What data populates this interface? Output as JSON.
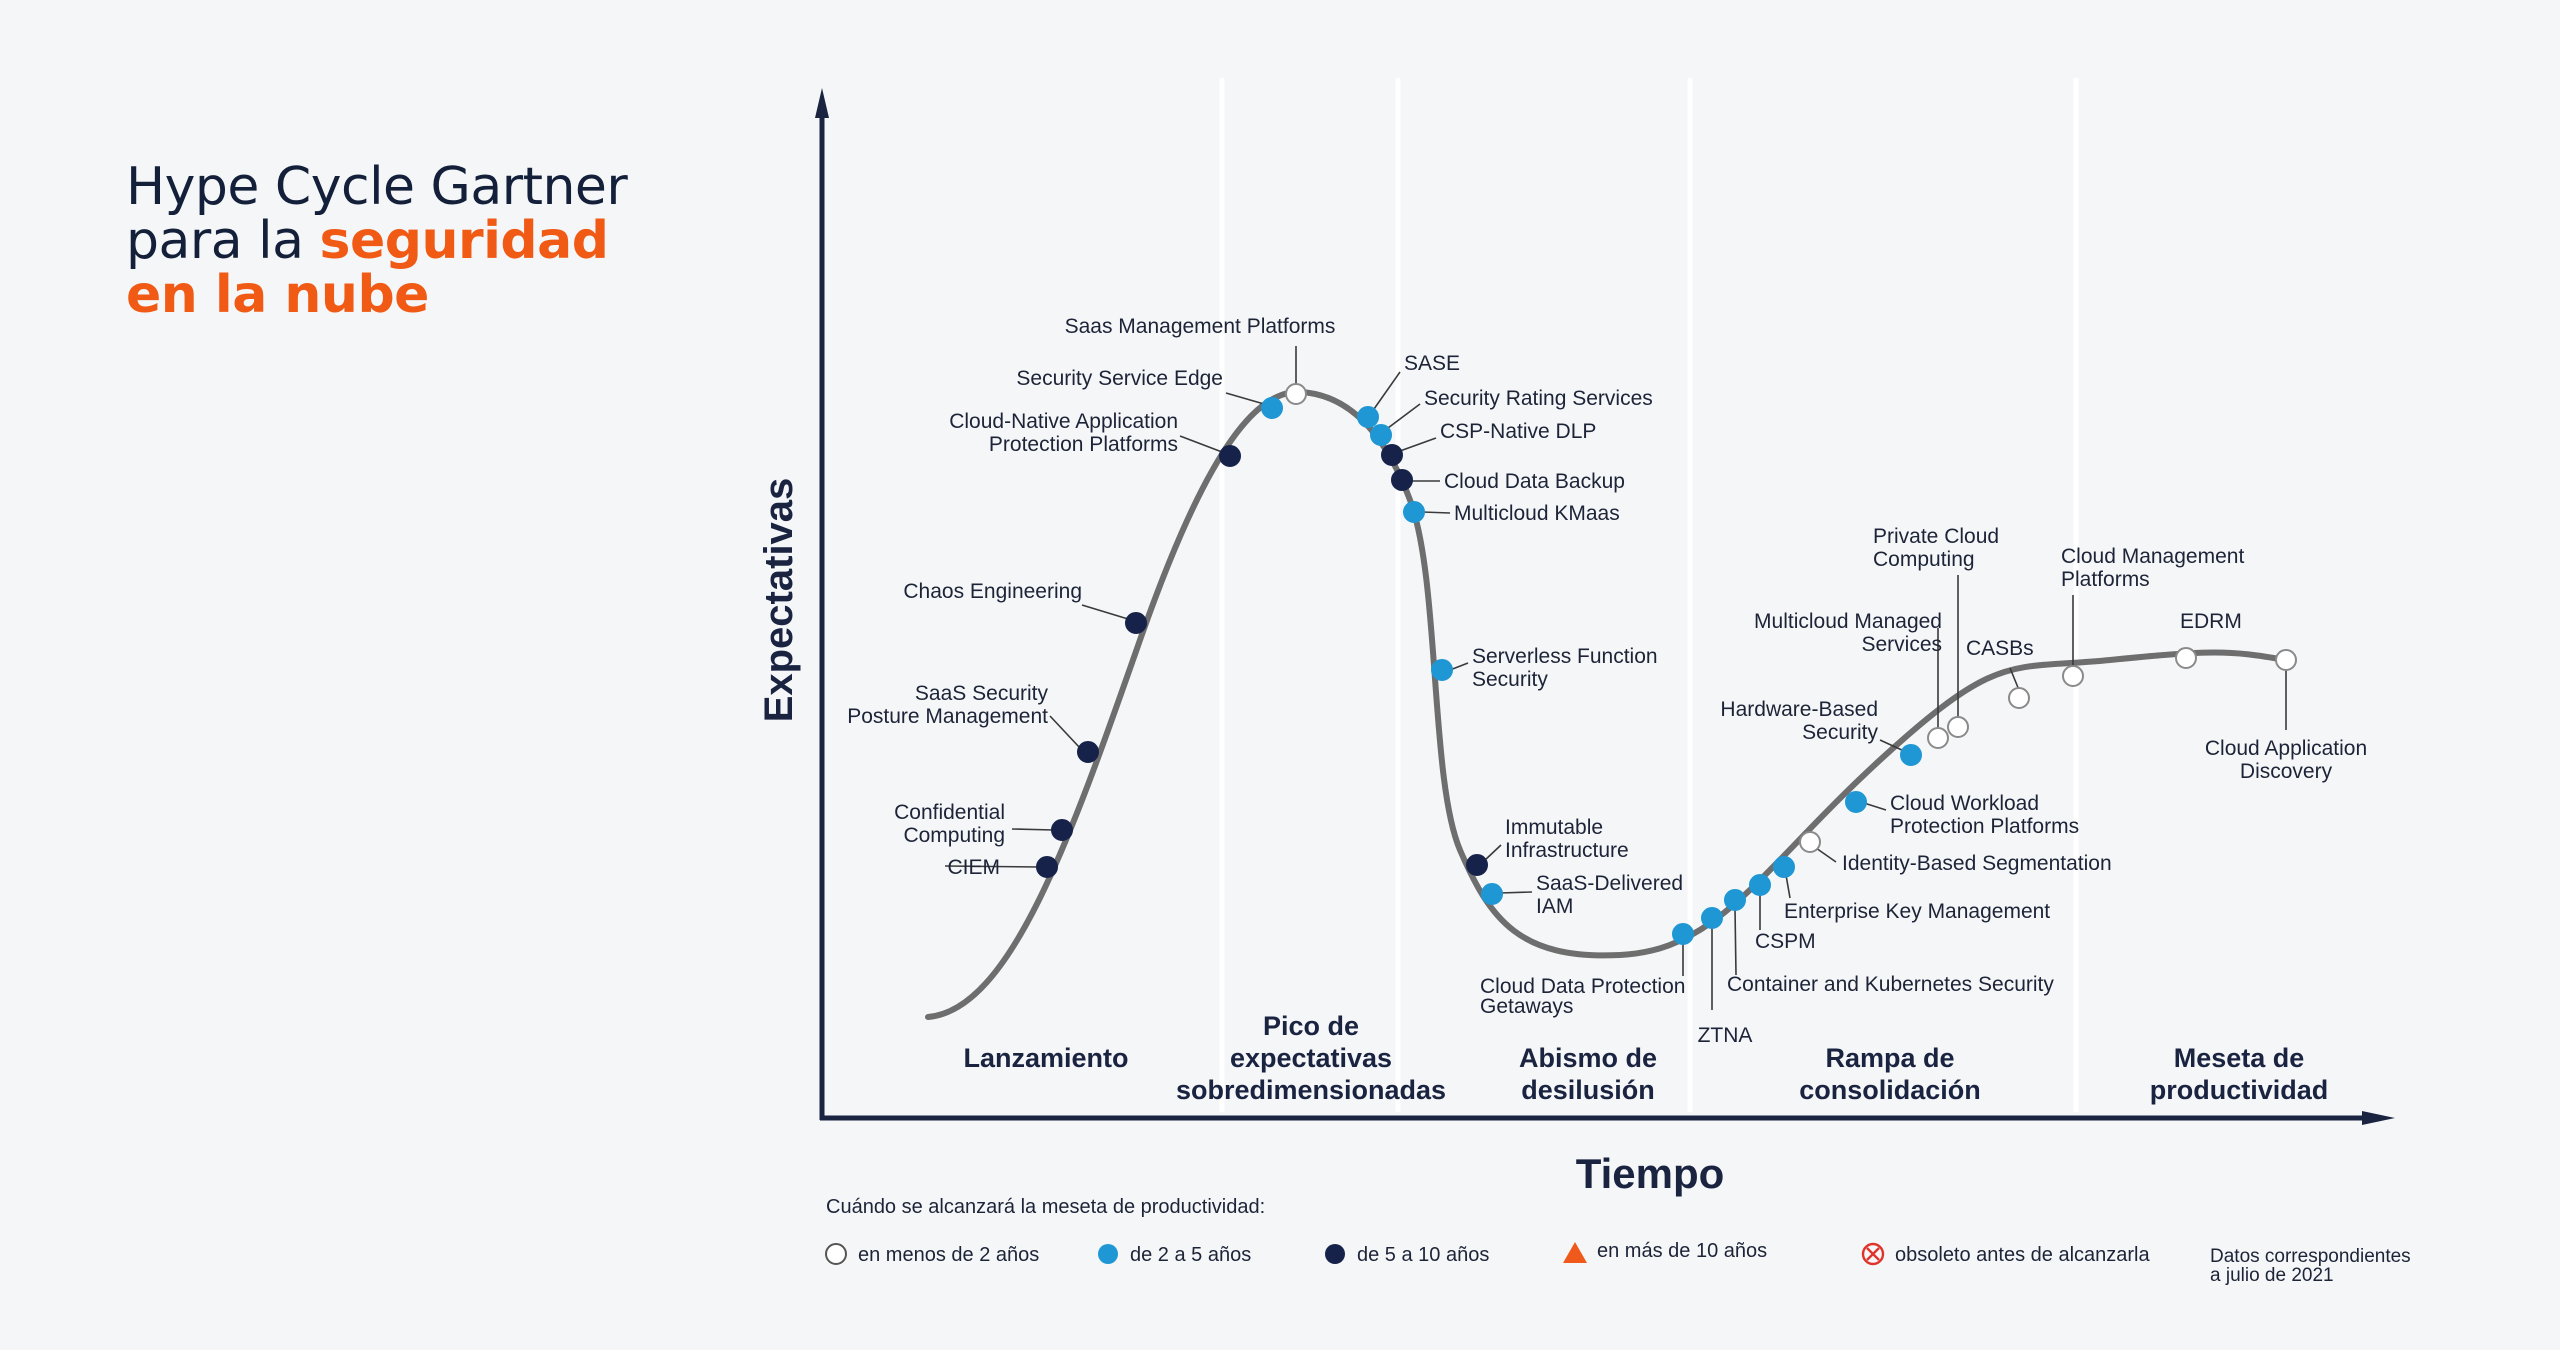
{
  "title": {
    "line1": "Hype Cycle Gartner",
    "line2_plain": "para la ",
    "line2_accent": "seguridad",
    "line3_accent": "en la nube"
  },
  "axes": {
    "y_label": "Expectativas",
    "x_label": "Tiempo"
  },
  "phases": [
    {
      "lines": [
        "Lanzamiento"
      ]
    },
    {
      "lines": [
        "Pico de",
        "expectativas",
        "sobredimensionadas"
      ]
    },
    {
      "lines": [
        "Abismo de",
        "desilusión"
      ]
    },
    {
      "lines": [
        "Rampa de",
        "consolidación"
      ]
    },
    {
      "lines": [
        "Meseta de",
        "productividad"
      ]
    }
  ],
  "technologies": [
    {
      "lines": [
        "CIEM"
      ],
      "category": "5-10"
    },
    {
      "lines": [
        "Confidential",
        "Computing"
      ],
      "category": "5-10"
    },
    {
      "lines": [
        "SaaS Security",
        "Posture Management"
      ],
      "category": "5-10"
    },
    {
      "lines": [
        "Chaos Engineering"
      ],
      "category": "5-10"
    },
    {
      "lines": [
        "Cloud-Native Application",
        "Protection Platforms"
      ],
      "category": "5-10"
    },
    {
      "lines": [
        "Security Service Edge"
      ],
      "category": "2-5"
    },
    {
      "lines": [
        "Saas Management Platforms"
      ],
      "category": "lt2"
    },
    {
      "lines": [
        "SASE"
      ],
      "category": "2-5"
    },
    {
      "lines": [
        "Security Rating Services"
      ],
      "category": "2-5"
    },
    {
      "lines": [
        "CSP-Native DLP"
      ],
      "category": "5-10"
    },
    {
      "lines": [
        "Cloud Data Backup"
      ],
      "category": "5-10"
    },
    {
      "lines": [
        "Multicloud KMaas"
      ],
      "category": "2-5"
    },
    {
      "lines": [
        "Serverless Function",
        "Security"
      ],
      "category": "2-5"
    },
    {
      "lines": [
        "Immutable",
        "Infrastructure"
      ],
      "category": "5-10"
    },
    {
      "lines": [
        "SaaS-Delivered",
        "IAM"
      ],
      "category": "2-5"
    },
    {
      "lines": [
        "Cloud Data Protection",
        "Getaways"
      ],
      "category": "2-5"
    },
    {
      "lines": [
        "ZTNA"
      ],
      "category": "2-5"
    },
    {
      "lines": [
        "Container and Kubernetes Security"
      ],
      "category": "2-5"
    },
    {
      "lines": [
        "CSPM"
      ],
      "category": "2-5"
    },
    {
      "lines": [
        "Enterprise Key Management"
      ],
      "category": "2-5"
    },
    {
      "lines": [
        "Identity-Based Segmentation"
      ],
      "category": "lt2"
    },
    {
      "lines": [
        "Cloud Workload",
        "Protection Platforms"
      ],
      "category": "2-5"
    },
    {
      "lines": [
        "Hardware-Based",
        "Security"
      ],
      "category": "2-5"
    },
    {
      "lines": [
        "Multicloud Managed",
        "Services"
      ],
      "category": "lt2"
    },
    {
      "lines": [
        "Private Cloud",
        "Computing"
      ],
      "category": "lt2"
    },
    {
      "lines": [
        "CASBs"
      ],
      "category": "lt2"
    },
    {
      "lines": [
        "Cloud Management",
        "Platforms"
      ],
      "category": "lt2"
    },
    {
      "lines": [
        "EDRM"
      ],
      "category": "lt2"
    },
    {
      "lines": [
        "Cloud Application",
        "Discovery"
      ],
      "category": "lt2"
    }
  ],
  "legend": {
    "heading": "Cuándo se alcanzará la meseta de productividad:",
    "items": [
      {
        "key": "lt2",
        "label": "en menos de 2 años",
        "shape": "circle-hollow"
      },
      {
        "key": "2-5",
        "label": "de 2 a 5 años",
        "shape": "circle-light"
      },
      {
        "key": "5-10",
        "label": "de 5 a 10 años",
        "shape": "circle-dark"
      },
      {
        "key": "gt10",
        "label": "en más de 10 años",
        "shape": "triangle"
      },
      {
        "key": "obsolete",
        "label": "obsoleto antes de alcanzarla",
        "shape": "crossed-circle"
      }
    ],
    "note": [
      "Datos correspondientes",
      "a julio de 2021"
    ]
  },
  "colors": {
    "light": "#1f97d4",
    "dark": "#16224a",
    "curve": "#6e6e6e",
    "axis": "#1a2340",
    "accent": "#f05a14",
    "triangle": "#ef5a1c",
    "obsolete": "#e0342b"
  }
}
